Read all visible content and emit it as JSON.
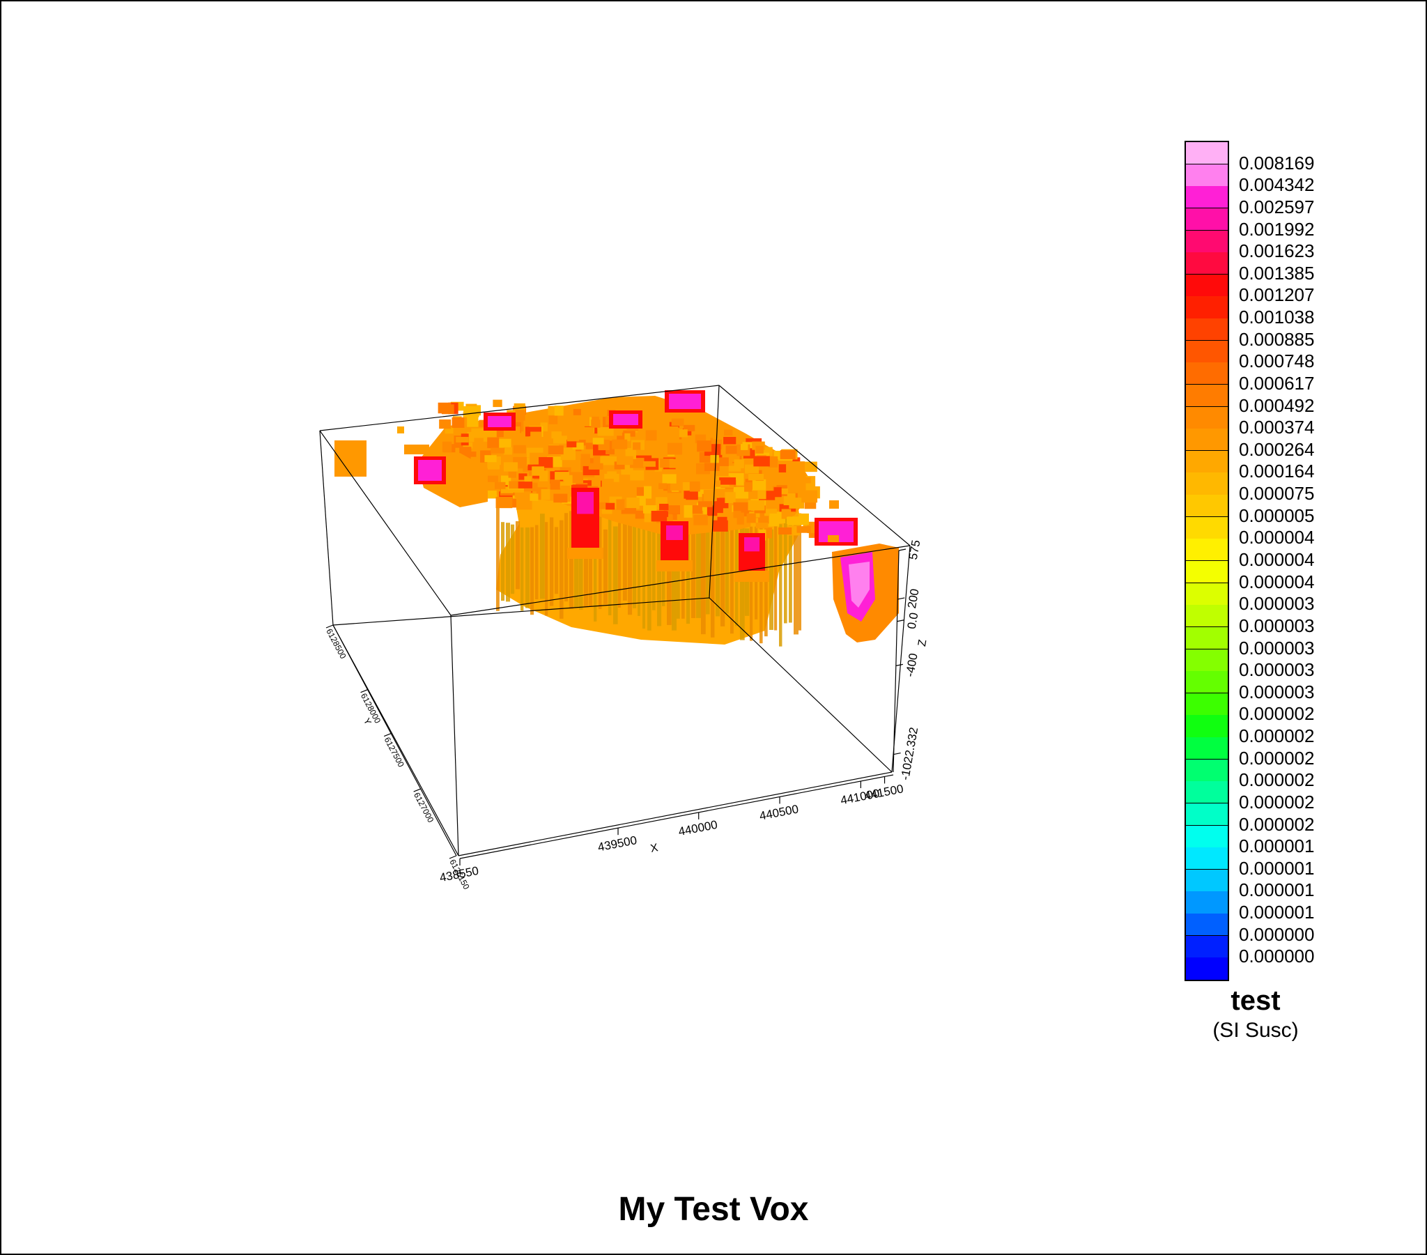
{
  "chart_data": {
    "type": "voxel",
    "title": "My Test Vox",
    "axes": {
      "x": {
        "label": "X",
        "ticks": [
          "438550",
          "439500",
          "440000",
          "440500",
          "441000",
          "441500"
        ]
      },
      "y": {
        "label": "Y",
        "ticks": [
          "6128500",
          "6128000",
          "6127500",
          "6127000",
          "6126150"
        ]
      },
      "z": {
        "label": "Z",
        "ticks": [
          "575",
          "200",
          "0.0",
          "-400",
          "-1022.332"
        ]
      }
    },
    "legend": {
      "title": "test",
      "unit": "(SI Susc)",
      "placement": "right",
      "values": [
        "0.008169",
        "0.004342",
        "0.002597",
        "0.001992",
        "0.001623",
        "0.001385",
        "0.001207",
        "0.001038",
        "0.000885",
        "0.000748",
        "0.000617",
        "0.000492",
        "0.000374",
        "0.000264",
        "0.000164",
        "0.000075",
        "0.000005",
        "0.000004",
        "0.000004",
        "0.000004",
        "0.000003",
        "0.000003",
        "0.000003",
        "0.000003",
        "0.000003",
        "0.000002",
        "0.000002",
        "0.000002",
        "0.000002",
        "0.000002",
        "0.000002",
        "0.000001",
        "0.000001",
        "0.000001",
        "0.000001",
        "0.000000",
        "0.000000"
      ],
      "colors": [
        "#ffb0f5",
        "#ff80ee",
        "#ff20d6",
        "#ff10a8",
        "#ff0a70",
        "#ff0a40",
        "#ff0a0a",
        "#ff2000",
        "#ff4200",
        "#ff5600",
        "#ff6c00",
        "#ff7c00",
        "#ff8a00",
        "#ff9800",
        "#ffa800",
        "#ffb800",
        "#ffc800",
        "#ffda00",
        "#fff000",
        "#f4ff00",
        "#dcff00",
        "#c0ff00",
        "#a2ff00",
        "#84ff00",
        "#64ff00",
        "#3cff00",
        "#10ff10",
        "#00ff40",
        "#00ff70",
        "#00ff9c",
        "#00ffc8",
        "#00ffee",
        "#00e8ff",
        "#00c8ff",
        "#0098ff",
        "#0060ff",
        "#0020ff",
        "#0000ff"
      ]
    }
  }
}
